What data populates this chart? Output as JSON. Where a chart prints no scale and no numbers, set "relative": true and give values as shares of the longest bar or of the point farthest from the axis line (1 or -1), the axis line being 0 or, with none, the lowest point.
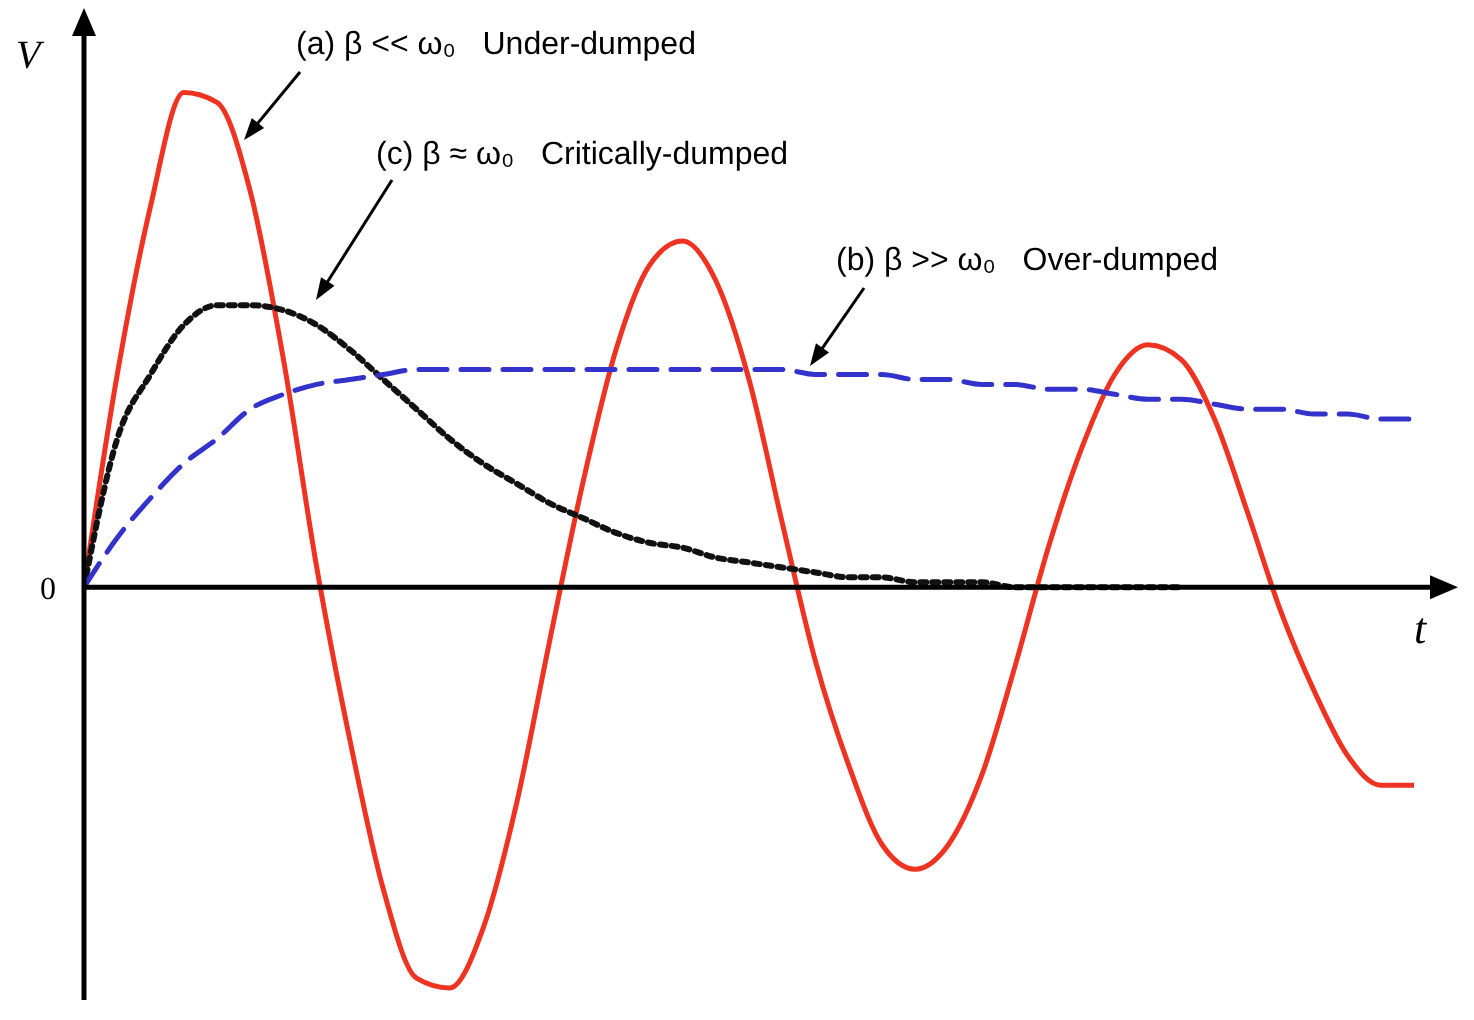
{
  "chart_data": {
    "type": "line",
    "relative": true,
    "xlabel": "t",
    "ylabel": "V",
    "grid": false,
    "legend": false,
    "marker": "none",
    "categories": [
      null,
      null,
      null,
      null,
      null,
      null,
      null,
      null,
      null,
      null,
      null,
      null,
      null,
      null,
      null,
      null,
      null,
      null,
      null,
      null,
      null,
      null,
      null,
      null,
      null,
      null,
      null,
      null,
      null,
      null,
      null,
      null,
      null,
      null,
      null,
      null,
      null,
      null,
      null,
      null,
      null
    ],
    "series": [
      {
        "color": "#ee3322",
        "line_style": "solid",
        "values": [
          0,
          0.43,
          0.77,
          1,
          0.98,
          0.8,
          0.46,
          0.04,
          -0.31,
          -0.61,
          -0.79,
          -0.81,
          -0.69,
          -0.44,
          -0.11,
          0.21,
          0.48,
          0.65,
          0.7,
          0.62,
          0.42,
          0.13,
          -0.15,
          -0.36,
          -0.52,
          -0.57,
          -0.52,
          -0.38,
          -0.16,
          0.08,
          0.28,
          0.43,
          0.49,
          0.46,
          0.34,
          0.15,
          -0.05,
          -0.21,
          -0.34,
          -0.4,
          -0.4
        ]
      },
      {
        "color": "#111111",
        "line_style": "dotted",
        "values": [
          0,
          0.3,
          0.43,
          0.53,
          0.57,
          0.57,
          0.56,
          0.53,
          0.48,
          0.42,
          0.36,
          0.3,
          0.25,
          0.21,
          0.17,
          0.14,
          0.11,
          0.09,
          0.08,
          0.06,
          0.05,
          0.04,
          0.03,
          0.02,
          0.02,
          0.01,
          0.01,
          0.01,
          0,
          0,
          0,
          0,
          0,
          0,
          null,
          null,
          null,
          null,
          null,
          null,
          null
        ]
      },
      {
        "color": "#3333cc",
        "line_style": "dashed",
        "values": [
          0,
          0.1,
          0.18,
          0.25,
          0.3,
          0.36,
          0.39,
          0.41,
          0.42,
          0.43,
          0.44,
          0.44,
          0.44,
          0.44,
          0.44,
          0.44,
          0.44,
          0.44,
          0.44,
          0.44,
          0.44,
          0.44,
          0.43,
          0.43,
          0.43,
          0.42,
          0.42,
          0.41,
          0.41,
          0.4,
          0.4,
          0.39,
          0.38,
          0.38,
          0.37,
          0.36,
          0.36,
          0.35,
          0.35,
          0.34,
          0.34
        ]
      }
    ],
    "annotations": [
      "(a) β << ω₀   Under-dumped",
      "(c) β ≈ ω₀   Critically-dumped",
      "(b) β >> ω₀   Over-dumped",
      "0"
    ]
  }
}
